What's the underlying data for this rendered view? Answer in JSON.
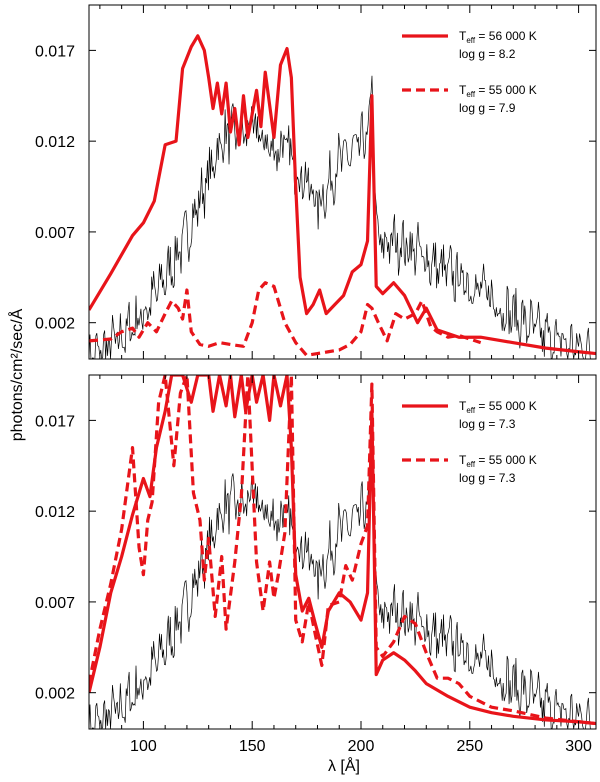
{
  "chart_data": [
    {
      "type": "line",
      "panel": "top",
      "xlim": [
        75,
        308
      ],
      "ylim": [
        0.0,
        0.0195
      ],
      "yticks": [
        "0.002",
        "0.007",
        "0.012",
        "0.017"
      ],
      "ylabel": "photons/cm²/sec/Å",
      "legend_position": "top-right",
      "colors": {
        "observed": "#000000",
        "model": "#e8141a"
      },
      "series": [
        {
          "style": "solid",
          "legend": {
            "main": "T",
            "sub": "eff",
            "value": " = 56 000 K",
            "line2": "log g = 8.2"
          },
          "points": [
            [
              75,
              0.0027
            ],
            [
              85,
              0.0047
            ],
            [
              95,
              0.0068
            ],
            [
              100,
              0.0075
            ],
            [
              105,
              0.0087
            ],
            [
              110,
              0.0118
            ],
            [
              115,
              0.012
            ],
            [
              118,
              0.016
            ],
            [
              122,
              0.0172
            ],
            [
              125,
              0.0178
            ],
            [
              128,
              0.017
            ],
            [
              130,
              0.0155
            ],
            [
              132,
              0.0138
            ],
            [
              134,
              0.0152
            ],
            [
              136,
              0.0135
            ],
            [
              138,
              0.0152
            ],
            [
              140,
              0.0125
            ],
            [
              142,
              0.0138
            ],
            [
              144,
              0.0118
            ],
            [
              146,
              0.0145
            ],
            [
              148,
              0.0122
            ],
            [
              150,
              0.0135
            ],
            [
              152,
              0.0148
            ],
            [
              154,
              0.0128
            ],
            [
              156,
              0.0158
            ],
            [
              158,
              0.014
            ],
            [
              160,
              0.0122
            ],
            [
              163,
              0.0162
            ],
            [
              166,
              0.0171
            ],
            [
              168,
              0.0155
            ],
            [
              170,
              0.0095
            ],
            [
              172,
              0.0045
            ],
            [
              175,
              0.0025
            ],
            [
              178,
              0.003
            ],
            [
              181,
              0.0038
            ],
            [
              184,
              0.0025
            ],
            [
              188,
              0.003
            ],
            [
              192,
              0.0035
            ],
            [
              196,
              0.0048
            ],
            [
              200,
              0.0052
            ],
            [
              203,
              0.0065
            ],
            [
              205,
              0.0145
            ],
            [
              207,
              0.004
            ],
            [
              210,
              0.0036
            ],
            [
              215,
              0.0042
            ],
            [
              220,
              0.0035
            ],
            [
              226,
              0.002
            ],
            [
              230,
              0.0028
            ],
            [
              235,
              0.0016
            ],
            [
              245,
              0.0012
            ],
            [
              255,
              0.0012
            ],
            [
              270,
              0.0009
            ],
            [
              285,
              0.0006
            ],
            [
              300,
              0.0004
            ],
            [
              308,
              0.0003
            ]
          ]
        },
        {
          "style": "dashed",
          "legend": {
            "main": "T",
            "sub": "eff",
            "value": " = 55 000 K",
            "line2": "log g = 7.9"
          },
          "points": [
            [
              75,
              0.001
            ],
            [
              85,
              0.0011
            ],
            [
              90,
              0.0015
            ],
            [
              95,
              0.0017
            ],
            [
              98,
              0.0012
            ],
            [
              102,
              0.002
            ],
            [
              106,
              0.0015
            ],
            [
              110,
              0.0025
            ],
            [
              113,
              0.0032
            ],
            [
              116,
              0.0028
            ],
            [
              118,
              0.0022
            ],
            [
              120,
              0.0038
            ],
            [
              122,
              0.0015
            ],
            [
              126,
              0.0008
            ],
            [
              130,
              0.0007
            ],
            [
              135,
              0.0009
            ],
            [
              140,
              0.0008
            ],
            [
              146,
              0.0007
            ],
            [
              150,
              0.002
            ],
            [
              153,
              0.0038
            ],
            [
              156,
              0.0042
            ],
            [
              160,
              0.004
            ],
            [
              165,
              0.002
            ],
            [
              170,
              0.0009
            ],
            [
              175,
              0.0002
            ],
            [
              180,
              0.0003
            ],
            [
              185,
              0.0004
            ],
            [
              190,
              0.0005
            ],
            [
              195,
              0.0008
            ],
            [
              200,
              0.0015
            ],
            [
              203,
              0.003
            ],
            [
              205,
              0.0028
            ],
            [
              208,
              0.002
            ],
            [
              212,
              0.001
            ],
            [
              216,
              0.0025
            ],
            [
              220,
              0.0022
            ],
            [
              225,
              0.0025
            ],
            [
              228,
              0.0032
            ],
            [
              232,
              0.0018
            ],
            [
              235,
              0.0015
            ],
            [
              240,
              0.0012
            ],
            [
              245,
              0.0013
            ],
            [
              250,
              0.0011
            ],
            [
              255,
              0.0009
            ]
          ]
        }
      ]
    },
    {
      "type": "line",
      "panel": "bottom",
      "xlim": [
        75,
        308
      ],
      "ylim": [
        0.0,
        0.0195
      ],
      "xticks": [
        "100",
        "150",
        "200",
        "250",
        "300"
      ],
      "yticks": [
        "0.002",
        "0.007",
        "0.012",
        "0.017"
      ],
      "xlabel": "λ [Å]",
      "legend_position": "top-right",
      "colors": {
        "observed": "#000000",
        "model": "#e8141a"
      },
      "series": [
        {
          "style": "solid",
          "legend": {
            "main": "T",
            "sub": "eff",
            "value": " = 55 000 K",
            "line2": "log g = 7.3"
          },
          "points": [
            [
              75,
              0.002
            ],
            [
              80,
              0.0045
            ],
            [
              85,
              0.0075
            ],
            [
              90,
              0.0095
            ],
            [
              95,
              0.0118
            ],
            [
              100,
              0.0138
            ],
            [
              103,
              0.0128
            ],
            [
              106,
              0.0155
            ],
            [
              110,
              0.0175
            ],
            [
              113,
              0.0195
            ],
            [
              118,
              0.0195
            ],
            [
              122,
              0.018
            ],
            [
              125,
              0.0195
            ],
            [
              130,
              0.0195
            ],
            [
              132,
              0.0175
            ],
            [
              135,
              0.0195
            ],
            [
              138,
              0.0178
            ],
            [
              140,
              0.0195
            ],
            [
              142,
              0.0172
            ],
            [
              145,
              0.0195
            ],
            [
              147,
              0.0175
            ],
            [
              150,
              0.0195
            ],
            [
              152,
              0.018
            ],
            [
              155,
              0.0195
            ],
            [
              158,
              0.017
            ],
            [
              160,
              0.0195
            ],
            [
              163,
              0.0178
            ],
            [
              166,
              0.0195
            ],
            [
              168,
              0.0155
            ],
            [
              170,
              0.0085
            ],
            [
              173,
              0.0065
            ],
            [
              176,
              0.0072
            ],
            [
              179,
              0.0058
            ],
            [
              182,
              0.0045
            ],
            [
              185,
              0.0065
            ],
            [
              190,
              0.0075
            ],
            [
              195,
              0.007
            ],
            [
              200,
              0.006
            ],
            [
              203,
              0.0075
            ],
            [
              205,
              0.0175
            ],
            [
              207,
              0.003
            ],
            [
              210,
              0.0038
            ],
            [
              215,
              0.0042
            ],
            [
              220,
              0.0038
            ],
            [
              225,
              0.0032
            ],
            [
              230,
              0.0025
            ],
            [
              240,
              0.0018
            ],
            [
              250,
              0.0012
            ],
            [
              260,
              0.0009
            ],
            [
              270,
              0.0007
            ],
            [
              285,
              0.0005
            ],
            [
              300,
              0.0004
            ],
            [
              308,
              0.0003
            ]
          ]
        },
        {
          "style": "dashed",
          "legend": {
            "main": "T",
            "sub": "eff",
            "value": " = 55 000 K",
            "line2": "log g = 7.3"
          },
          "points": [
            [
              75,
              0.0025
            ],
            [
              80,
              0.0055
            ],
            [
              85,
              0.008
            ],
            [
              90,
              0.011
            ],
            [
              95,
              0.0155
            ],
            [
              98,
              0.01
            ],
            [
              100,
              0.0085
            ],
            [
              102,
              0.0115
            ],
            [
              104,
              0.0125
            ],
            [
              107,
              0.018
            ],
            [
              110,
              0.0195
            ],
            [
              114,
              0.0145
            ],
            [
              117,
              0.0185
            ],
            [
              120,
              0.0195
            ],
            [
              123,
              0.013
            ],
            [
              126,
              0.0115
            ],
            [
              128,
              0.0082
            ],
            [
              130,
              0.0105
            ],
            [
              133,
              0.0062
            ],
            [
              136,
              0.0095
            ],
            [
              138,
              0.0055
            ],
            [
              142,
              0.0092
            ],
            [
              145,
              0.0128
            ],
            [
              148,
              0.0195
            ],
            [
              152,
              0.0092
            ],
            [
              155,
              0.0065
            ],
            [
              158,
              0.0092
            ],
            [
              160,
              0.0072
            ],
            [
              162,
              0.0085
            ],
            [
              165,
              0.0108
            ],
            [
              168,
              0.0195
            ],
            [
              170,
              0.006
            ],
            [
              173,
              0.0048
            ],
            [
              176,
              0.007
            ],
            [
              179,
              0.0052
            ],
            [
              182,
              0.0035
            ],
            [
              185,
              0.0068
            ],
            [
              190,
              0.007
            ],
            [
              193,
              0.009
            ],
            [
              196,
              0.0082
            ],
            [
              200,
              0.0102
            ],
            [
              203,
              0.0112
            ],
            [
              205,
              0.019
            ],
            [
              207,
              0.0045
            ],
            [
              210,
              0.004
            ],
            [
              215,
              0.0048
            ],
            [
              220,
              0.0062
            ],
            [
              225,
              0.0058
            ],
            [
              230,
              0.0042
            ],
            [
              235,
              0.0028
            ],
            [
              240,
              0.0028
            ],
            [
              245,
              0.0025
            ],
            [
              250,
              0.0018
            ],
            [
              260,
              0.0012
            ],
            [
              270,
              0.001
            ],
            [
              285,
              0.0006
            ],
            [
              300,
              0.0004
            ],
            [
              308,
              0.0003
            ]
          ]
        }
      ]
    }
  ]
}
